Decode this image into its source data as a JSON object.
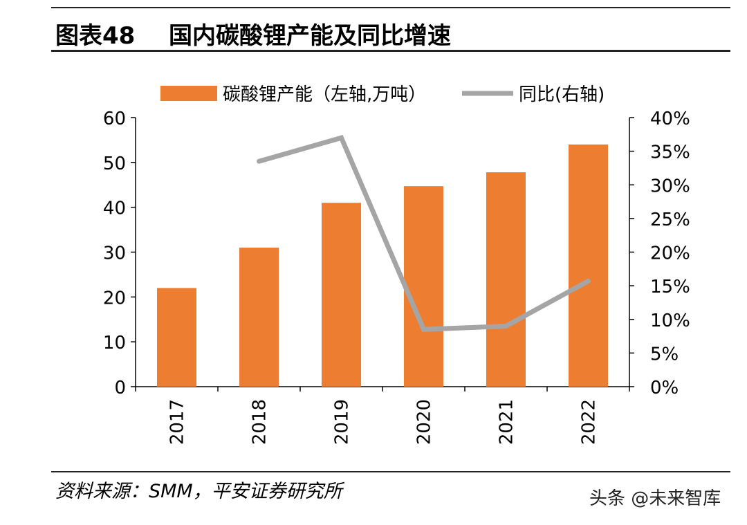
{
  "header": {
    "figure_number": "图表48",
    "title": "国内碳酸锂产能及同比增速"
  },
  "chart_data": {
    "type": "bar",
    "title": "国内碳酸锂产能及同比增速",
    "categories": [
      "2017",
      "2018",
      "2019",
      "2020",
      "2021",
      "2022"
    ],
    "series": [
      {
        "name": "碳酸锂产能（左轴,万吨）",
        "kind": "bar",
        "axis": "left",
        "color": "#ED7D31",
        "values": [
          22,
          31,
          41,
          44.7,
          47.8,
          54
        ]
      },
      {
        "name": "同比(右轴)",
        "kind": "line",
        "axis": "right",
        "color": "#A5A5A5",
        "values": [
          null,
          33.5,
          37.0,
          8.5,
          9.0,
          15.7
        ]
      }
    ],
    "y_left": {
      "range": [
        0,
        60
      ],
      "ticks": [
        "0",
        "10",
        "20",
        "30",
        "40",
        "50",
        "60"
      ]
    },
    "y_right": {
      "range": [
        0,
        40
      ],
      "ticks": [
        "0%",
        "5%",
        "10%",
        "15%",
        "20%",
        "25%",
        "30%",
        "35%",
        "40%"
      ]
    },
    "legend": {
      "position": "top",
      "bar_label": "碳酸锂产能（左轴,万吨）",
      "line_label": "同比(右轴)"
    },
    "grid": false
  },
  "footer": {
    "source": "资料来源：SMM，平安证券研究所",
    "watermark": "头条 @未来智库"
  }
}
